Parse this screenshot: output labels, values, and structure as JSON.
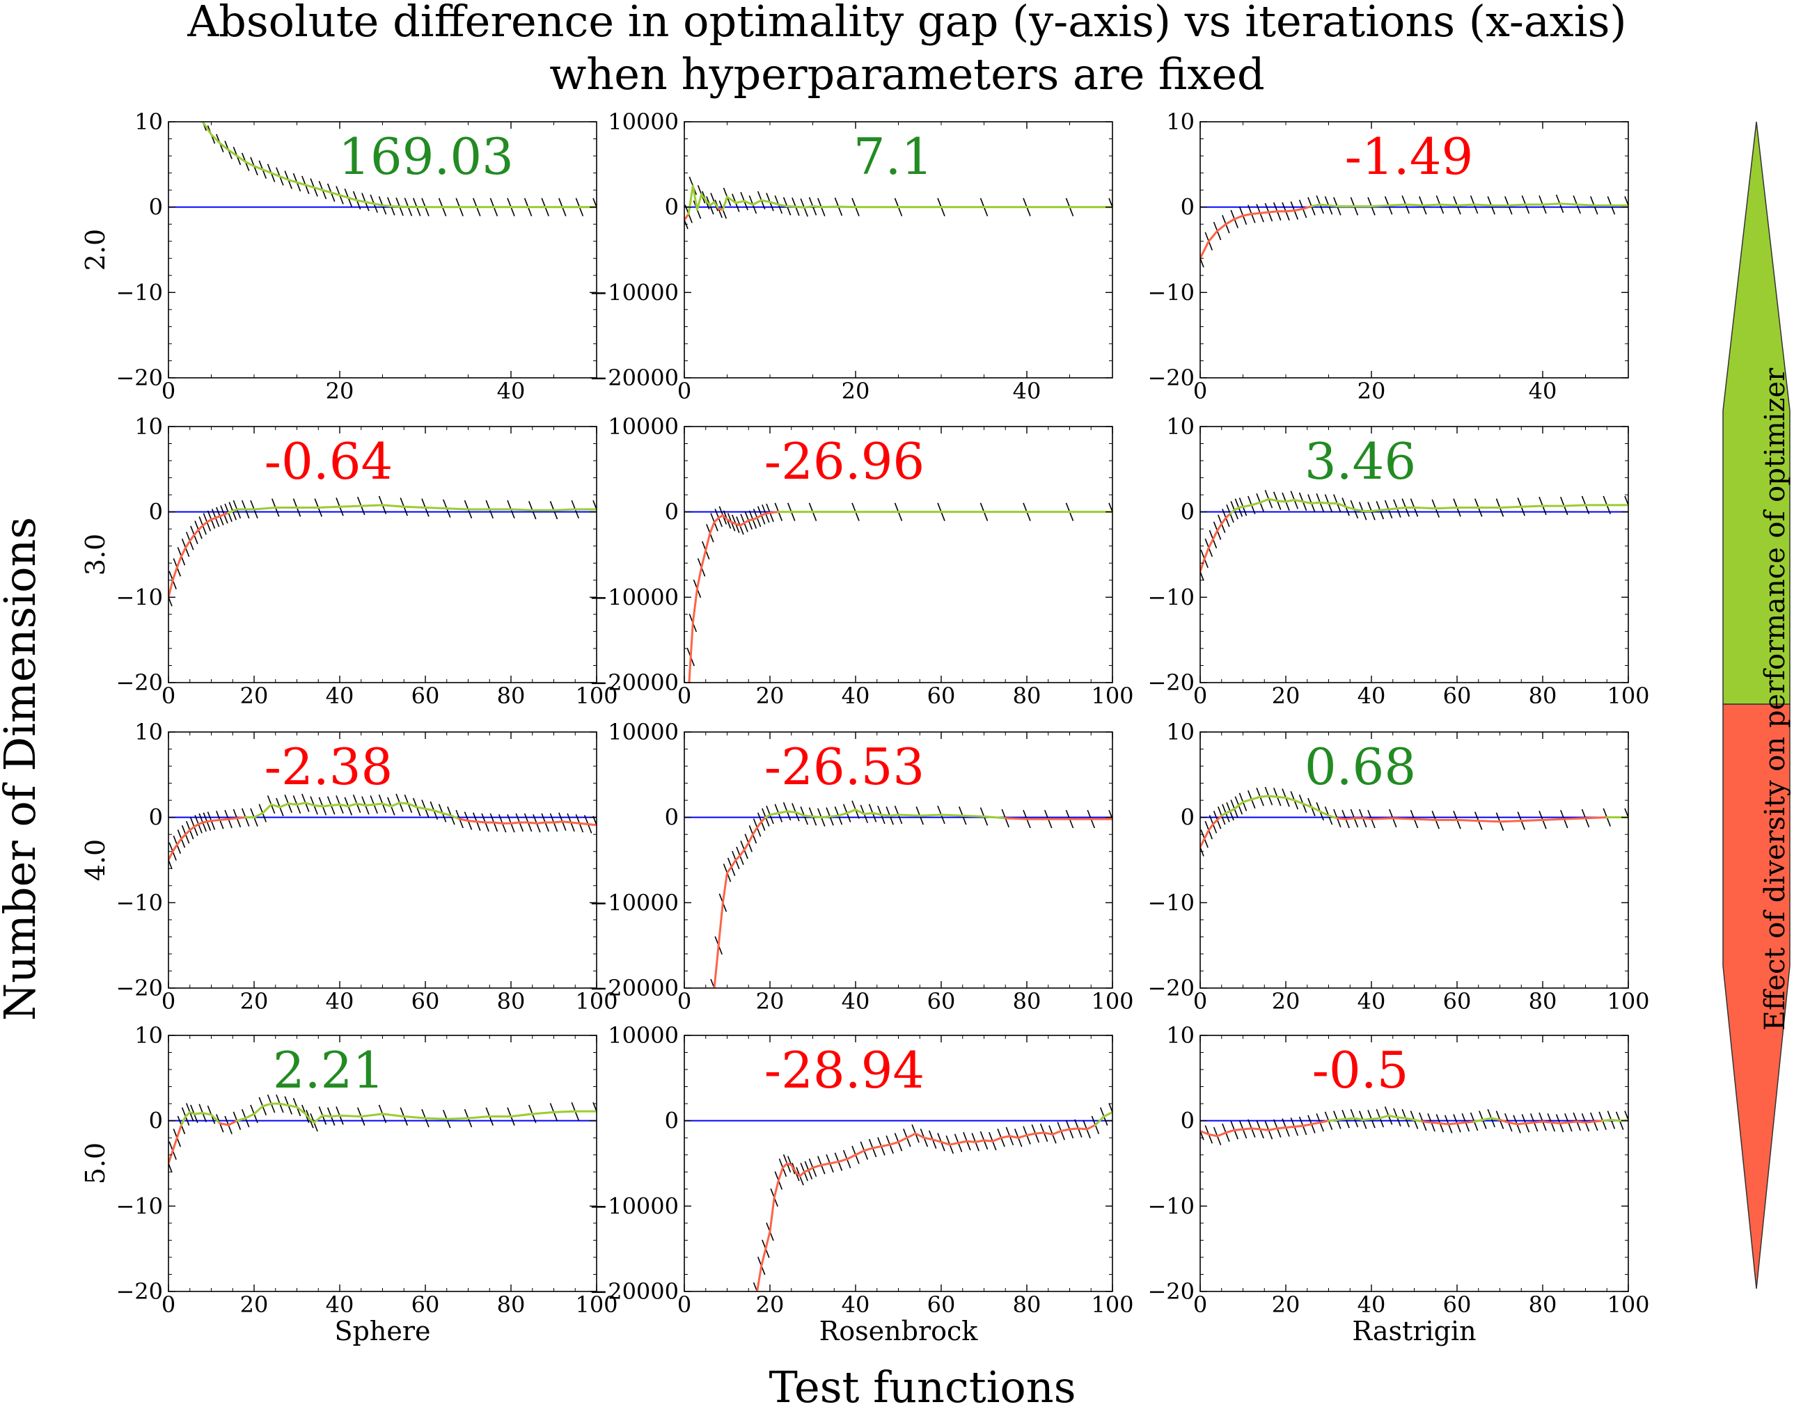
{
  "figure": {
    "title_line1": "Absolute difference in optimality gap (y-axis) vs iterations (x-axis)",
    "title_line2": "when hyperparameters are fixed",
    "xlabel": "Test functions",
    "ylabel": "Number of Dimensions",
    "colorbar_label": "Effect of diversity on performance of optimizer"
  },
  "colors": {
    "positive": "#9acd32",
    "negative": "#ff6347",
    "positive_text": "#228b22",
    "negative_text": "#ff0000",
    "baseline": "#0000ff",
    "hatch": "#000000"
  },
  "chart_data": [
    {
      "type": "line",
      "function": "Sphere",
      "dimensions": "2.0",
      "score": "169.03",
      "xlim": [
        0,
        50
      ],
      "ylim": [
        -20,
        10
      ],
      "xticks": [
        0,
        20,
        40
      ],
      "yticks": [
        -20,
        -10,
        0,
        10
      ],
      "x": [
        0,
        1,
        2,
        3,
        4,
        5,
        6,
        7,
        8,
        9,
        10,
        11,
        12,
        13,
        14,
        15,
        16,
        17,
        18,
        19,
        20,
        21,
        22,
        23,
        24,
        25,
        26,
        27,
        28,
        29,
        30,
        32,
        34,
        36,
        38,
        40,
        42,
        44,
        46,
        48,
        50
      ],
      "y": [
        18,
        15,
        13,
        11,
        10,
        8.5,
        7.5,
        6.7,
        6.0,
        5.3,
        4.8,
        4.4,
        4.0,
        3.6,
        3.2,
        2.9,
        2.6,
        2.3,
        2.0,
        1.7,
        1.4,
        1.1,
        0.8,
        0.6,
        0.4,
        0.2,
        0.1,
        0.05,
        0.02,
        0.01,
        0,
        0,
        0,
        0,
        0,
        0,
        0,
        0,
        0,
        0,
        0
      ]
    },
    {
      "type": "line",
      "function": "Rosenbrock",
      "dimensions": "2.0",
      "score": "7.1",
      "xlim": [
        0,
        50
      ],
      "ylim": [
        -20000,
        10000
      ],
      "xticks": [
        0,
        20,
        40
      ],
      "yticks": [
        -20000,
        -10000,
        0,
        10000
      ],
      "x": [
        0,
        0.5,
        1,
        1.5,
        2,
        2.5,
        3,
        3.5,
        4,
        4.5,
        5,
        6,
        7,
        8,
        9,
        10,
        11,
        12,
        13,
        14,
        15,
        16,
        18,
        20,
        25,
        30,
        35,
        40,
        45,
        50
      ],
      "y": [
        -1500,
        -800,
        2500,
        -300,
        1500,
        800,
        200,
        600,
        -200,
        -300,
        1200,
        500,
        700,
        300,
        800,
        600,
        300,
        100,
        50,
        -50,
        100,
        0,
        50,
        0,
        0,
        0,
        0,
        0,
        0,
        0
      ]
    },
    {
      "type": "line",
      "function": "Rastrigin",
      "dimensions": "2.0",
      "score": "-1.49",
      "xlim": [
        0,
        50
      ],
      "ylim": [
        -20,
        10
      ],
      "xticks": [
        0,
        20,
        40
      ],
      "yticks": [
        -20,
        -10,
        0,
        10
      ],
      "x": [
        0,
        1,
        2,
        3,
        4,
        5,
        6,
        7,
        8,
        9,
        10,
        11,
        12,
        13,
        14,
        15,
        16,
        18,
        20,
        22,
        24,
        26,
        28,
        30,
        32,
        34,
        36,
        38,
        40,
        42,
        44,
        46,
        48,
        50
      ],
      "y": [
        -6.0,
        -4.0,
        -2.8,
        -2.0,
        -1.4,
        -1.0,
        -0.8,
        -0.7,
        -0.6,
        -0.5,
        -0.5,
        -0.4,
        -0.2,
        0.1,
        0.3,
        0.2,
        0.1,
        0.1,
        0.1,
        0.2,
        0.3,
        0.2,
        0.3,
        0.2,
        0.3,
        0.2,
        0.2,
        0.3,
        0.3,
        0.4,
        0.3,
        0.2,
        0.2,
        0.2
      ]
    },
    {
      "type": "line",
      "function": "Sphere",
      "dimensions": "3.0",
      "score": "-0.64",
      "xlim": [
        0,
        100
      ],
      "ylim": [
        -20,
        10
      ],
      "xticks": [
        0,
        20,
        40,
        60,
        80,
        100
      ],
      "yticks": [
        -20,
        -10,
        0,
        10
      ],
      "x": [
        0,
        1,
        2,
        3,
        4,
        5,
        6,
        7,
        8,
        9,
        10,
        11,
        12,
        13,
        14,
        15,
        16,
        18,
        20,
        25,
        30,
        35,
        40,
        45,
        50,
        55,
        60,
        65,
        70,
        75,
        80,
        85,
        90,
        95,
        100
      ],
      "y": [
        -10.0,
        -8.0,
        -6.5,
        -5.2,
        -4.2,
        -3.4,
        -2.7,
        -2.1,
        -1.6,
        -1.2,
        -0.9,
        -0.7,
        -0.5,
        -0.3,
        -0.1,
        0.1,
        0.3,
        0.3,
        0.3,
        0.5,
        0.5,
        0.5,
        0.6,
        0.7,
        0.8,
        0.6,
        0.5,
        0.4,
        0.3,
        0.3,
        0.3,
        0.2,
        0.2,
        0.3,
        0.3
      ]
    },
    {
      "type": "line",
      "function": "Rosenbrock",
      "dimensions": "3.0",
      "score": "-26.96",
      "xlim": [
        0,
        100
      ],
      "ylim": [
        -20000,
        10000
      ],
      "xticks": [
        0,
        20,
        40,
        60,
        80,
        100
      ],
      "yticks": [
        -20000,
        -10000,
        0,
        10000
      ],
      "x": [
        1,
        1.5,
        2,
        3,
        4,
        5,
        6,
        7,
        8,
        9,
        10,
        11,
        12,
        13,
        14,
        15,
        16,
        17,
        18,
        19,
        20,
        22,
        25,
        30,
        40,
        50,
        60,
        70,
        80,
        90,
        100
      ],
      "y": [
        -21000,
        -17000,
        -13000,
        -9000,
        -6500,
        -4500,
        -2500,
        -1200,
        -700,
        -400,
        -900,
        -1200,
        -1400,
        -1600,
        -1300,
        -1000,
        -900,
        -700,
        -400,
        -200,
        -100,
        0,
        0,
        0,
        0,
        0,
        0,
        0,
        0,
        0,
        0
      ]
    },
    {
      "type": "line",
      "function": "Rastrigin",
      "dimensions": "3.0",
      "score": "3.46",
      "xlim": [
        0,
        100
      ],
      "ylim": [
        -20,
        10
      ],
      "xticks": [
        0,
        20,
        40,
        60,
        80,
        100
      ],
      "yticks": [
        -20,
        -10,
        0,
        10
      ],
      "x": [
        0,
        1,
        2,
        3,
        4,
        5,
        6,
        7,
        8,
        9,
        10,
        12,
        14,
        16,
        18,
        20,
        22,
        24,
        26,
        28,
        30,
        32,
        34,
        36,
        38,
        40,
        42,
        44,
        46,
        48,
        50,
        55,
        60,
        65,
        70,
        75,
        80,
        85,
        90,
        95,
        100
      ],
      "y": [
        -7.0,
        -5.5,
        -4.2,
        -3.2,
        -2.2,
        -1.4,
        -0.7,
        -0.2,
        0.2,
        0.5,
        0.6,
        0.8,
        1.1,
        1.5,
        1.3,
        1.2,
        1.4,
        1.2,
        1.0,
        1.1,
        1.0,
        1.0,
        0.6,
        0.3,
        0.1,
        0.1,
        0.2,
        0.3,
        0.4,
        0.5,
        0.5,
        0.4,
        0.5,
        0.5,
        0.5,
        0.6,
        0.7,
        0.7,
        0.8,
        0.8,
        0.8
      ]
    },
    {
      "type": "line",
      "function": "Sphere",
      "dimensions": "4.0",
      "score": "-2.38",
      "xlim": [
        0,
        100
      ],
      "ylim": [
        -20,
        10
      ],
      "xticks": [
        0,
        20,
        40,
        60,
        80,
        100
      ],
      "yticks": [
        -20,
        -10,
        0,
        10
      ],
      "x": [
        0,
        1,
        2,
        3,
        4,
        5,
        6,
        7,
        8,
        9,
        10,
        12,
        14,
        16,
        18,
        20,
        22,
        24,
        26,
        28,
        30,
        32,
        34,
        36,
        38,
        40,
        42,
        44,
        46,
        48,
        50,
        52,
        54,
        56,
        58,
        60,
        62,
        64,
        66,
        68,
        70,
        72,
        74,
        76,
        78,
        80,
        82,
        84,
        86,
        88,
        90,
        92,
        94,
        96,
        98,
        100
      ],
      "y": [
        -5.0,
        -4.0,
        -3.2,
        -2.5,
        -2.0,
        -1.5,
        -1.1,
        -0.8,
        -0.6,
        -0.5,
        -0.4,
        -0.3,
        -0.2,
        -0.1,
        0,
        0,
        0.5,
        1.5,
        1.2,
        1.6,
        1.5,
        1.7,
        1.4,
        1.3,
        1.4,
        1.5,
        1.3,
        1.6,
        1.4,
        1.5,
        1.6,
        1.3,
        1.7,
        1.6,
        1.2,
        1.0,
        0.8,
        0.5,
        0.2,
        -0.2,
        -0.4,
        -0.5,
        -0.6,
        -0.6,
        -0.7,
        -0.7,
        -0.6,
        -0.6,
        -0.7,
        -0.6,
        -0.6,
        -0.5,
        -0.6,
        -0.7,
        -0.8,
        -0.9
      ]
    },
    {
      "type": "line",
      "function": "Rosenbrock",
      "dimensions": "4.0",
      "score": "-26.53",
      "xlim": [
        0,
        100
      ],
      "ylim": [
        -20000,
        10000
      ],
      "xticks": [
        0,
        20,
        40,
        60,
        80,
        100
      ],
      "yticks": [
        -20000,
        -10000,
        0,
        10000
      ],
      "x": [
        7,
        8,
        9,
        10,
        11,
        12,
        13,
        14,
        15,
        16,
        17,
        18,
        19,
        20,
        22,
        24,
        26,
        28,
        30,
        32,
        34,
        36,
        38,
        40,
        42,
        44,
        46,
        48,
        50,
        55,
        60,
        65,
        70,
        75,
        80,
        85,
        90,
        95,
        100
      ],
      "y": [
        -20000,
        -15000,
        -10000,
        -6500,
        -5800,
        -5000,
        -4500,
        -3800,
        -3000,
        -2000,
        -1200,
        -500,
        0,
        300,
        500,
        700,
        600,
        200,
        100,
        0,
        100,
        200,
        500,
        900,
        400,
        500,
        300,
        200,
        300,
        200,
        300,
        200,
        100,
        -100,
        -200,
        -200,
        -200,
        -200,
        -200
      ]
    },
    {
      "type": "line",
      "function": "Rastrigin",
      "dimensions": "4.0",
      "score": "0.68",
      "xlim": [
        0,
        100
      ],
      "ylim": [
        -20,
        10
      ],
      "xticks": [
        0,
        20,
        40,
        60,
        80,
        100
      ],
      "yticks": [
        -20,
        -10,
        0,
        10
      ],
      "x": [
        0,
        1,
        2,
        3,
        4,
        5,
        6,
        7,
        8,
        9,
        10,
        12,
        14,
        16,
        18,
        20,
        22,
        24,
        26,
        28,
        30,
        32,
        34,
        36,
        38,
        40,
        45,
        50,
        55,
        60,
        65,
        70,
        75,
        80,
        85,
        90,
        95,
        100
      ],
      "y": [
        -3.5,
        -2.5,
        -1.5,
        -0.8,
        -0.3,
        0.2,
        0.5,
        0.7,
        1.0,
        1.4,
        1.8,
        2.1,
        2.4,
        2.5,
        2.4,
        2.3,
        2.0,
        1.6,
        1.2,
        0.7,
        0.2,
        -0.1,
        -0.2,
        -0.1,
        -0.1,
        -0.2,
        -0.1,
        -0.2,
        -0.3,
        -0.3,
        -0.4,
        -0.5,
        -0.4,
        -0.3,
        -0.2,
        -0.1,
        0,
        0
      ]
    },
    {
      "type": "line",
      "function": "Sphere",
      "dimensions": "5.0",
      "score": "2.21",
      "xlim": [
        0,
        100
      ],
      "ylim": [
        -20,
        10
      ],
      "xticks": [
        0,
        20,
        40,
        60,
        80,
        100
      ],
      "yticks": [
        -20,
        -10,
        0,
        10
      ],
      "x": [
        0,
        1,
        2,
        3,
        4,
        5,
        6,
        8,
        10,
        12,
        14,
        16,
        18,
        20,
        22,
        24,
        26,
        28,
        30,
        32,
        33,
        34,
        36,
        38,
        40,
        45,
        50,
        55,
        60,
        65,
        70,
        75,
        80,
        85,
        90,
        95,
        100
      ],
      "y": [
        -5.0,
        -3.5,
        -2.0,
        -0.5,
        0.5,
        1.0,
        0.8,
        0.9,
        0.7,
        -0.3,
        -0.5,
        0,
        0.3,
        0.8,
        1.7,
        2.0,
        2.0,
        1.8,
        1.6,
        0.8,
        0.2,
        -0.2,
        0.6,
        0.5,
        0.6,
        0.5,
        0.8,
        0.5,
        0.3,
        0.2,
        0.3,
        0.5,
        0.5,
        0.8,
        1.0,
        1.1,
        1.1
      ]
    },
    {
      "type": "line",
      "function": "Rosenbrock",
      "dimensions": "5.0",
      "score": "-28.94",
      "xlim": [
        0,
        100
      ],
      "ylim": [
        -20000,
        10000
      ],
      "xticks": [
        0,
        20,
        40,
        60,
        80,
        100
      ],
      "yticks": [
        -20000,
        -10000,
        0,
        10000
      ],
      "x": [
        17,
        18,
        19,
        20,
        21,
        22,
        23,
        24,
        25,
        26,
        27,
        28,
        29,
        30,
        32,
        34,
        36,
        38,
        40,
        42,
        44,
        46,
        48,
        50,
        52,
        54,
        56,
        58,
        60,
        62,
        64,
        66,
        68,
        70,
        72,
        74,
        76,
        78,
        80,
        82,
        84,
        86,
        88,
        90,
        92,
        94,
        96,
        98,
        100
      ],
      "y": [
        -20000,
        -17000,
        -15000,
        -13000,
        -9000,
        -7000,
        -5500,
        -5000,
        -5200,
        -6000,
        -6500,
        -6000,
        -5800,
        -5500,
        -5200,
        -5000,
        -4800,
        -4500,
        -4000,
        -3500,
        -3200,
        -3000,
        -2800,
        -2500,
        -2000,
        -1500,
        -2000,
        -2200,
        -2500,
        -2800,
        -2600,
        -2400,
        -2500,
        -2300,
        -2400,
        -2000,
        -1800,
        -2000,
        -1700,
        -1500,
        -1400,
        -1600,
        -1200,
        -1000,
        -900,
        -1000,
        -500,
        500,
        1000
      ]
    },
    {
      "type": "line",
      "function": "Rastrigin",
      "dimensions": "5.0",
      "score": "-0.5",
      "xlim": [
        0,
        100
      ],
      "ylim": [
        -20,
        10
      ],
      "xticks": [
        0,
        20,
        40,
        60,
        80,
        100
      ],
      "yticks": [
        -20,
        -10,
        0,
        10
      ],
      "x": [
        0,
        2,
        4,
        6,
        8,
        10,
        12,
        14,
        16,
        18,
        20,
        22,
        24,
        26,
        28,
        30,
        32,
        34,
        36,
        38,
        40,
        42,
        44,
        46,
        48,
        50,
        52,
        54,
        56,
        58,
        60,
        62,
        64,
        66,
        68,
        70,
        72,
        74,
        76,
        78,
        80,
        82,
        84,
        86,
        88,
        90,
        92,
        94,
        96,
        98,
        100
      ],
      "y": [
        -1.2,
        -1.6,
        -1.8,
        -1.4,
        -1.1,
        -1.0,
        -0.9,
        -1.0,
        -1.1,
        -0.9,
        -0.8,
        -0.7,
        -0.6,
        -0.4,
        -0.2,
        0,
        0.1,
        0.2,
        0.3,
        0.1,
        0.2,
        0.3,
        0.6,
        0.4,
        0.3,
        0.1,
        -0.1,
        -0.2,
        -0.3,
        -0.4,
        -0.3,
        -0.2,
        -0.1,
        0.1,
        0.3,
        0.1,
        -0.2,
        -0.4,
        -0.3,
        -0.2,
        -0.1,
        -0.2,
        -0.3,
        -0.2,
        -0.1,
        -0.2,
        -0.1,
        0,
        0.1,
        0,
        0.1
      ]
    }
  ]
}
